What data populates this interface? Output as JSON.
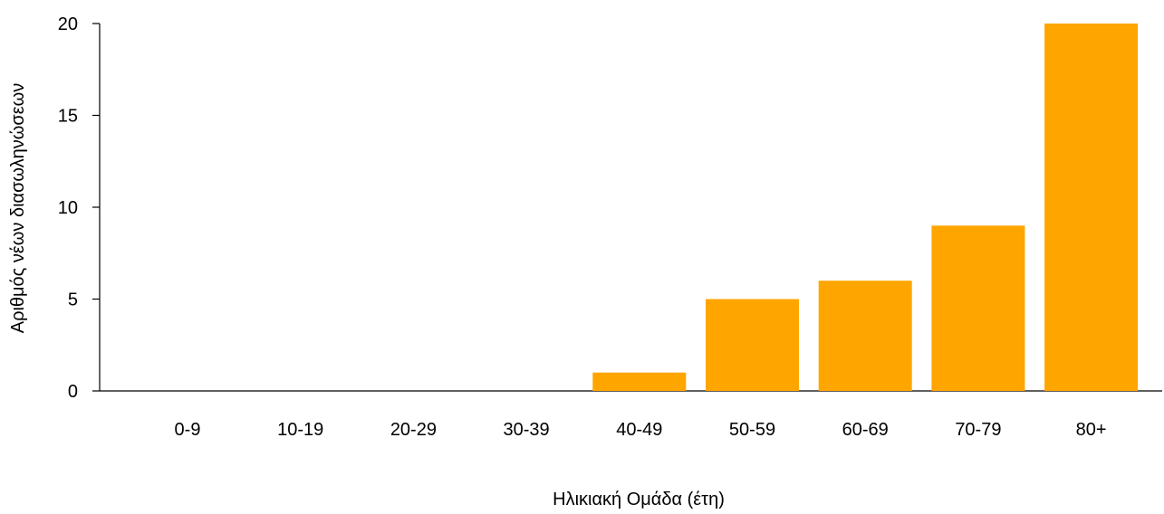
{
  "chart_data": {
    "type": "bar",
    "title": "",
    "xlabel": "Ηλικιακή Ομάδα (έτη)",
    "ylabel": "Αριθμός νέων διασωληνώσεων",
    "categories": [
      "0-9",
      "10-19",
      "20-29",
      "30-39",
      "40-49",
      "50-59",
      "60-69",
      "70-79",
      "80+"
    ],
    "values": [
      0,
      0,
      0,
      0,
      1,
      5,
      6,
      9,
      20
    ],
    "ylim": [
      0,
      20
    ],
    "yticks": [
      0,
      5,
      10,
      15,
      20
    ],
    "grid": false,
    "colors": {
      "bar": "#FFA500",
      "axis": "#000000"
    }
  }
}
